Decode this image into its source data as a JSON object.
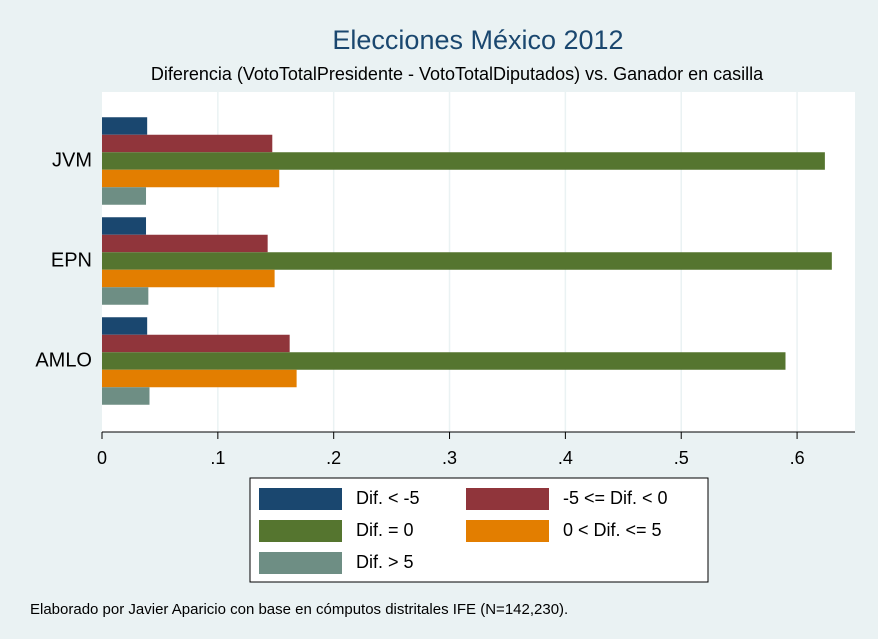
{
  "chart_data": {
    "type": "hbar",
    "title": "Elecciones México 2012",
    "subtitle": "Diferencia (VotoTotalPresidente - VotoTotalDiputados) vs. Ganador en casilla",
    "note": "Elaborado por Javier Aparicio con base en cómputos distritales IFE (N=142,230).",
    "categories": [
      "JVM",
      "EPN",
      "AMLO"
    ],
    "series": [
      {
        "name": "Dif. < -5",
        "color": "#1a476f",
        "values": [
          0.039,
          0.038,
          0.039
        ]
      },
      {
        "name": "-5 <= Dif. < 0",
        "color": "#90353b",
        "values": [
          0.147,
          0.143,
          0.162
        ]
      },
      {
        "name": "Dif. = 0",
        "color": "#55752f",
        "values": [
          0.624,
          0.63,
          0.59
        ]
      },
      {
        "name": "0 < Dif. <= 5",
        "color": "#e37e00",
        "values": [
          0.153,
          0.149,
          0.168
        ]
      },
      {
        "name": "Dif. > 5",
        "color": "#6e8e84",
        "values": [
          0.038,
          0.04,
          0.041
        ]
      }
    ],
    "xlim": [
      0,
      0.65
    ],
    "xticks": [
      0,
      {
        "value": 0.1,
        "label": ".1"
      },
      {
        "value": 0.2,
        "label": ".2"
      },
      {
        "value": 0.3,
        "label": ".3"
      },
      {
        "value": 0.4,
        "label": ".4"
      },
      {
        "value": 0.5,
        "label": ".5"
      },
      {
        "value": 0.6,
        "label": ".6"
      }
    ],
    "grid": true
  }
}
